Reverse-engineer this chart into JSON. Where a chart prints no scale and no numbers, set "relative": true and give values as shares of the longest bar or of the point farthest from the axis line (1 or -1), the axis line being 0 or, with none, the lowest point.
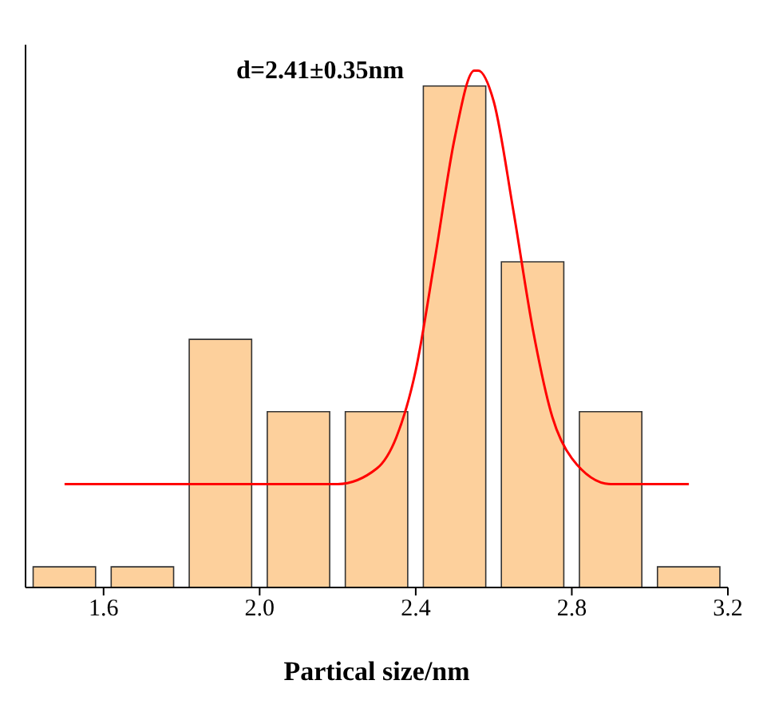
{
  "chart_data": {
    "type": "histogram",
    "relative": true,
    "xlabel": "Partical size/nm",
    "annotations": [
      "d=2.41±0.35nm"
    ],
    "bins": [
      1.4,
      1.6,
      1.8,
      2.0,
      2.2,
      2.4,
      2.6,
      2.8,
      3.0,
      3.2
    ],
    "values": [
      0.04,
      0.04,
      0.48,
      0.34,
      0.34,
      0.97,
      0.63,
      0.34,
      0.04
    ],
    "color": "#fdd09c",
    "series": [
      {
        "type": "line",
        "color": "#ff0000",
        "x": [
          1.5,
          2.0,
          2.2,
          2.3,
          2.35,
          2.4,
          2.45,
          2.5,
          2.55,
          2.56,
          2.6,
          2.65,
          2.7,
          2.75,
          2.8,
          2.9,
          3.0,
          3.1
        ],
        "values": [
          0.2,
          0.2,
          0.2,
          0.23,
          0.29,
          0.42,
          0.64,
          0.87,
          1.0,
          1.0,
          0.94,
          0.73,
          0.5,
          0.33,
          0.25,
          0.2,
          0.2,
          0.2
        ]
      }
    ],
    "xlim": [
      1.4,
      3.2
    ],
    "xticks": [
      1.6,
      {
        "value": 2,
        "label": "2.0"
      },
      2.4,
      2.8,
      3.2
    ],
    "grid": false,
    "legend": false,
    "marker": "none",
    "line_style": "solid"
  }
}
